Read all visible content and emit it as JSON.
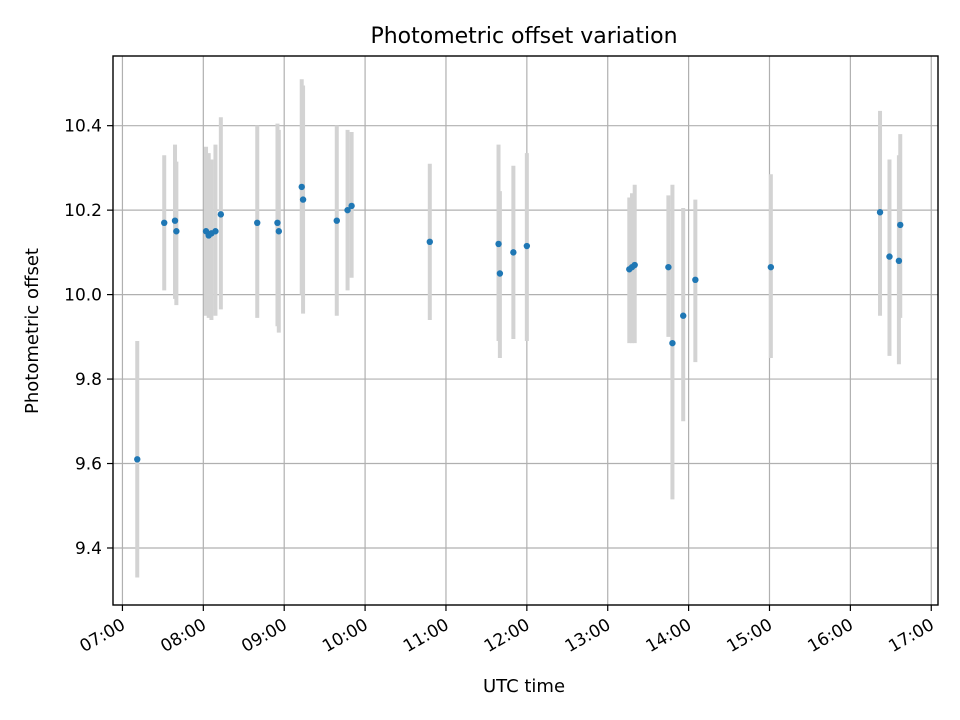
{
  "chart_data": {
    "type": "scatter",
    "title": "Photometric offset variation",
    "xlabel": "UTC time",
    "ylabel": "Photometric offset",
    "grid": true,
    "xlim": [
      "06:53",
      "17:05"
    ],
    "ylim": [
      9.265,
      10.565
    ],
    "x_ticks": [
      "07:00",
      "08:00",
      "09:00",
      "10:00",
      "11:00",
      "12:00",
      "13:00",
      "14:00",
      "15:00",
      "16:00",
      "17:00"
    ],
    "y_ticks": [
      9.4,
      9.6,
      9.8,
      10.0,
      10.2,
      10.4
    ],
    "y_tick_labels": [
      "9.4",
      "9.6",
      "9.8",
      "10.0",
      "10.2",
      "10.4"
    ],
    "colors": {
      "points": "#1f77b4",
      "errorbars": "#d3d3d3",
      "grid": "#b0b0b0"
    },
    "series": [
      {
        "points": [
          {
            "x": "07:11",
            "y": 9.61,
            "lo": 9.33,
            "hi": 9.89
          },
          {
            "x": "07:31",
            "y": 10.17,
            "lo": 10.01,
            "hi": 10.33
          },
          {
            "x": "07:39",
            "y": 10.175,
            "lo": 9.99,
            "hi": 10.355
          },
          {
            "x": "07:40",
            "y": 10.15,
            "lo": 9.975,
            "hi": 10.315
          },
          {
            "x": "08:02",
            "y": 10.15,
            "lo": 9.95,
            "hi": 10.35
          },
          {
            "x": "08:04",
            "y": 10.14,
            "lo": 9.945,
            "hi": 10.335
          },
          {
            "x": "08:06",
            "y": 10.145,
            "lo": 9.94,
            "hi": 10.32
          },
          {
            "x": "08:09",
            "y": 10.15,
            "lo": 9.95,
            "hi": 10.355
          },
          {
            "x": "08:13",
            "y": 10.19,
            "lo": 9.965,
            "hi": 10.42
          },
          {
            "x": "08:40",
            "y": 10.17,
            "lo": 9.945,
            "hi": 10.4
          },
          {
            "x": "08:55",
            "y": 10.17,
            "lo": 9.925,
            "hi": 10.405
          },
          {
            "x": "08:56",
            "y": 10.15,
            "lo": 9.91,
            "hi": 10.39
          },
          {
            "x": "09:13",
            "y": 10.255,
            "lo": 10.0,
            "hi": 10.51
          },
          {
            "x": "09:14",
            "y": 10.225,
            "lo": 9.955,
            "hi": 10.495
          },
          {
            "x": "09:39",
            "y": 10.175,
            "lo": 9.95,
            "hi": 10.4
          },
          {
            "x": "09:47",
            "y": 10.2,
            "lo": 10.01,
            "hi": 10.39
          },
          {
            "x": "09:50",
            "y": 10.21,
            "lo": 10.04,
            "hi": 10.385
          },
          {
            "x": "10:48",
            "y": 10.125,
            "lo": 9.94,
            "hi": 10.31
          },
          {
            "x": "11:39",
            "y": 10.12,
            "lo": 9.89,
            "hi": 10.355
          },
          {
            "x": "11:40",
            "y": 10.05,
            "lo": 9.85,
            "hi": 10.245
          },
          {
            "x": "11:50",
            "y": 10.1,
            "lo": 9.895,
            "hi": 10.305
          },
          {
            "x": "12:00",
            "y": 10.115,
            "lo": 9.89,
            "hi": 10.335
          },
          {
            "x": "13:16",
            "y": 10.06,
            "lo": 9.885,
            "hi": 10.23
          },
          {
            "x": "13:18",
            "y": 10.065,
            "lo": 9.885,
            "hi": 10.24
          },
          {
            "x": "13:20",
            "y": 10.07,
            "lo": 9.885,
            "hi": 10.26
          },
          {
            "x": "13:45",
            "y": 10.065,
            "lo": 9.9,
            "hi": 10.235
          },
          {
            "x": "13:48",
            "y": 9.885,
            "lo": 9.515,
            "hi": 10.26
          },
          {
            "x": "13:56",
            "y": 9.95,
            "lo": 9.7,
            "hi": 10.205
          },
          {
            "x": "14:05",
            "y": 10.035,
            "lo": 9.84,
            "hi": 10.225
          },
          {
            "x": "15:01",
            "y": 10.065,
            "lo": 9.85,
            "hi": 10.285
          },
          {
            "x": "16:22",
            "y": 10.195,
            "lo": 9.95,
            "hi": 10.435
          },
          {
            "x": "16:29",
            "y": 10.09,
            "lo": 9.855,
            "hi": 10.32
          },
          {
            "x": "16:36",
            "y": 10.08,
            "lo": 9.835,
            "hi": 10.33
          },
          {
            "x": "16:37",
            "y": 10.165,
            "lo": 9.945,
            "hi": 10.38
          }
        ]
      }
    ]
  }
}
